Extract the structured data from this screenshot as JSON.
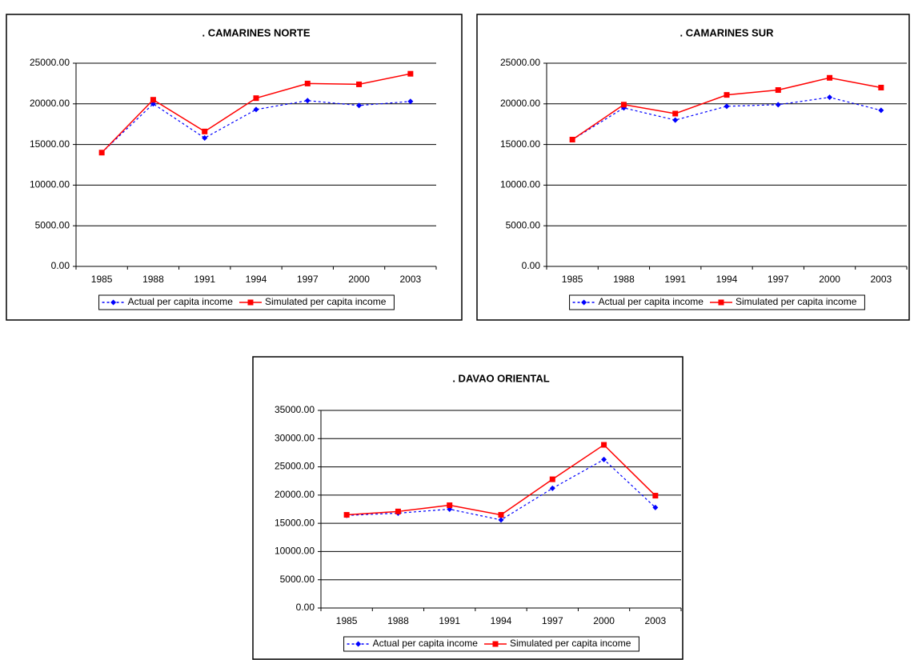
{
  "chart_data": [
    {
      "type": "line",
      "title": ". CAMARINES NORTE",
      "categories": [
        "1985",
        "1988",
        "1991",
        "1994",
        "1997",
        "2000",
        "2003"
      ],
      "series": [
        {
          "name": "Actual per capita income",
          "color": "#0000ff",
          "dashed": true,
          "marker": "diamond",
          "values": [
            14000,
            20000,
            15800,
            19300,
            20400,
            19800,
            20300
          ]
        },
        {
          "name": "Simulated per capita income",
          "color": "#ff0000",
          "dashed": false,
          "marker": "square",
          "values": [
            14000,
            20500,
            16600,
            20700,
            22500,
            22400,
            23700
          ]
        }
      ],
      "ylim": [
        0,
        25000
      ],
      "yticks": [
        {
          "value": 0,
          "label": "0.00"
        },
        {
          "value": 5000,
          "label": "5000.00"
        },
        {
          "value": 10000,
          "label": "10000.00"
        },
        {
          "value": 15000,
          "label": "15000.00"
        },
        {
          "value": 20000,
          "label": "20000.00"
        },
        {
          "value": 25000,
          "label": "25000.00"
        }
      ],
      "grid": true,
      "legend": "bottom"
    },
    {
      "type": "line",
      "title": ". CAMARINES SUR",
      "categories": [
        "1985",
        "1988",
        "1991",
        "1994",
        "1997",
        "2000",
        "2003"
      ],
      "series": [
        {
          "name": "Actual per capita income",
          "color": "#0000ff",
          "dashed": true,
          "marker": "diamond",
          "values": [
            15600,
            19500,
            18000,
            19700,
            19900,
            20800,
            19200
          ]
        },
        {
          "name": "Simulated per capita income",
          "color": "#ff0000",
          "dashed": false,
          "marker": "square",
          "values": [
            15600,
            19900,
            18800,
            21100,
            21700,
            23200,
            22000
          ]
        }
      ],
      "ylim": [
        0,
        25000
      ],
      "yticks": [
        {
          "value": 0,
          "label": "0.00"
        },
        {
          "value": 5000,
          "label": "5000.00"
        },
        {
          "value": 10000,
          "label": "10000.00"
        },
        {
          "value": 15000,
          "label": "15000.00"
        },
        {
          "value": 20000,
          "label": "20000.00"
        },
        {
          "value": 25000,
          "label": "25000.00"
        }
      ],
      "grid": true,
      "legend": "bottom"
    },
    {
      "type": "line",
      "title": ". DAVAO ORIENTAL",
      "categories": [
        "1985",
        "1988",
        "1991",
        "1994",
        "1997",
        "2000",
        "2003"
      ],
      "series": [
        {
          "name": "Actual per capita income",
          "color": "#0000ff",
          "dashed": true,
          "marker": "diamond",
          "values": [
            16400,
            16800,
            17500,
            15600,
            21200,
            26300,
            17800
          ]
        },
        {
          "name": "Simulated per capita income",
          "color": "#ff0000",
          "dashed": false,
          "marker": "square",
          "values": [
            16500,
            17100,
            18200,
            16500,
            22800,
            28900,
            19900
          ]
        }
      ],
      "ylim": [
        0,
        35000
      ],
      "yticks": [
        {
          "value": 0,
          "label": "0.00"
        },
        {
          "value": 5000,
          "label": "5000.00"
        },
        {
          "value": 10000,
          "label": "10000.00"
        },
        {
          "value": 15000,
          "label": "15000.00"
        },
        {
          "value": 20000,
          "label": "20000.00"
        },
        {
          "value": 25000,
          "label": "25000.00"
        },
        {
          "value": 30000,
          "label": "30000.00"
        },
        {
          "value": 35000,
          "label": "35000.00"
        }
      ],
      "grid": true,
      "legend": "bottom"
    }
  ]
}
